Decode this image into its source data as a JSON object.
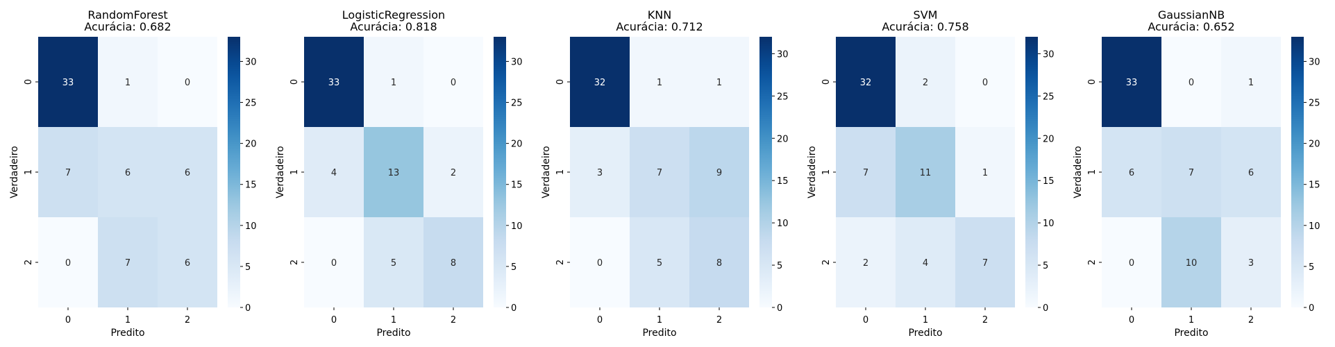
{
  "chart_data": [
    {
      "type": "heatmap",
      "title": "RandomForest",
      "subtitle": "Acurácia: 0.682",
      "xlabel": "Predito",
      "ylabel": "Verdadeiro",
      "x_categories": [
        "0",
        "1",
        "2"
      ],
      "y_categories": [
        "0",
        "1",
        "2"
      ],
      "values": [
        [
          33,
          1,
          0
        ],
        [
          7,
          6,
          6
        ],
        [
          0,
          7,
          6
        ]
      ],
      "colorbar": {
        "min": 0,
        "max": 33,
        "ticks": [
          0,
          5,
          10,
          15,
          20,
          25,
          30
        ]
      },
      "colormap": "Blues"
    },
    {
      "type": "heatmap",
      "title": "LogisticRegression",
      "subtitle": "Acurácia: 0.818",
      "xlabel": "Predito",
      "ylabel": "Verdadeiro",
      "x_categories": [
        "0",
        "1",
        "2"
      ],
      "y_categories": [
        "0",
        "1",
        "2"
      ],
      "values": [
        [
          33,
          1,
          0
        ],
        [
          4,
          13,
          2
        ],
        [
          0,
          5,
          8
        ]
      ],
      "colorbar": {
        "min": 0,
        "max": 33,
        "ticks": [
          0,
          5,
          10,
          15,
          20,
          25,
          30
        ]
      },
      "colormap": "Blues"
    },
    {
      "type": "heatmap",
      "title": "KNN",
      "subtitle": "Acurácia: 0.712",
      "xlabel": "Predito",
      "ylabel": "Verdadeiro",
      "x_categories": [
        "0",
        "1",
        "2"
      ],
      "y_categories": [
        "0",
        "1",
        "2"
      ],
      "values": [
        [
          32,
          1,
          1
        ],
        [
          3,
          7,
          9
        ],
        [
          0,
          5,
          8
        ]
      ],
      "colorbar": {
        "min": 0,
        "max": 32,
        "ticks": [
          0,
          5,
          10,
          15,
          20,
          25,
          30
        ]
      },
      "colormap": "Blues"
    },
    {
      "type": "heatmap",
      "title": "SVM",
      "subtitle": "Acurácia: 0.758",
      "xlabel": "Predito",
      "ylabel": "Verdadeiro",
      "x_categories": [
        "0",
        "1",
        "2"
      ],
      "y_categories": [
        "0",
        "1",
        "2"
      ],
      "values": [
        [
          32,
          2,
          0
        ],
        [
          7,
          11,
          1
        ],
        [
          2,
          4,
          7
        ]
      ],
      "colorbar": {
        "min": 0,
        "max": 32,
        "ticks": [
          0,
          5,
          10,
          15,
          20,
          25,
          30
        ]
      },
      "colormap": "Blues"
    },
    {
      "type": "heatmap",
      "title": "GaussianNB",
      "subtitle": "Acurácia: 0.652",
      "xlabel": "Predito",
      "ylabel": "Verdadeiro",
      "x_categories": [
        "0",
        "1",
        "2"
      ],
      "y_categories": [
        "0",
        "1",
        "2"
      ],
      "values": [
        [
          33,
          0,
          1
        ],
        [
          6,
          7,
          6
        ],
        [
          0,
          10,
          3
        ]
      ],
      "colorbar": {
        "min": 0,
        "max": 33,
        "ticks": [
          0,
          5,
          10,
          15,
          20,
          25,
          30
        ]
      },
      "colormap": "Blues"
    }
  ]
}
